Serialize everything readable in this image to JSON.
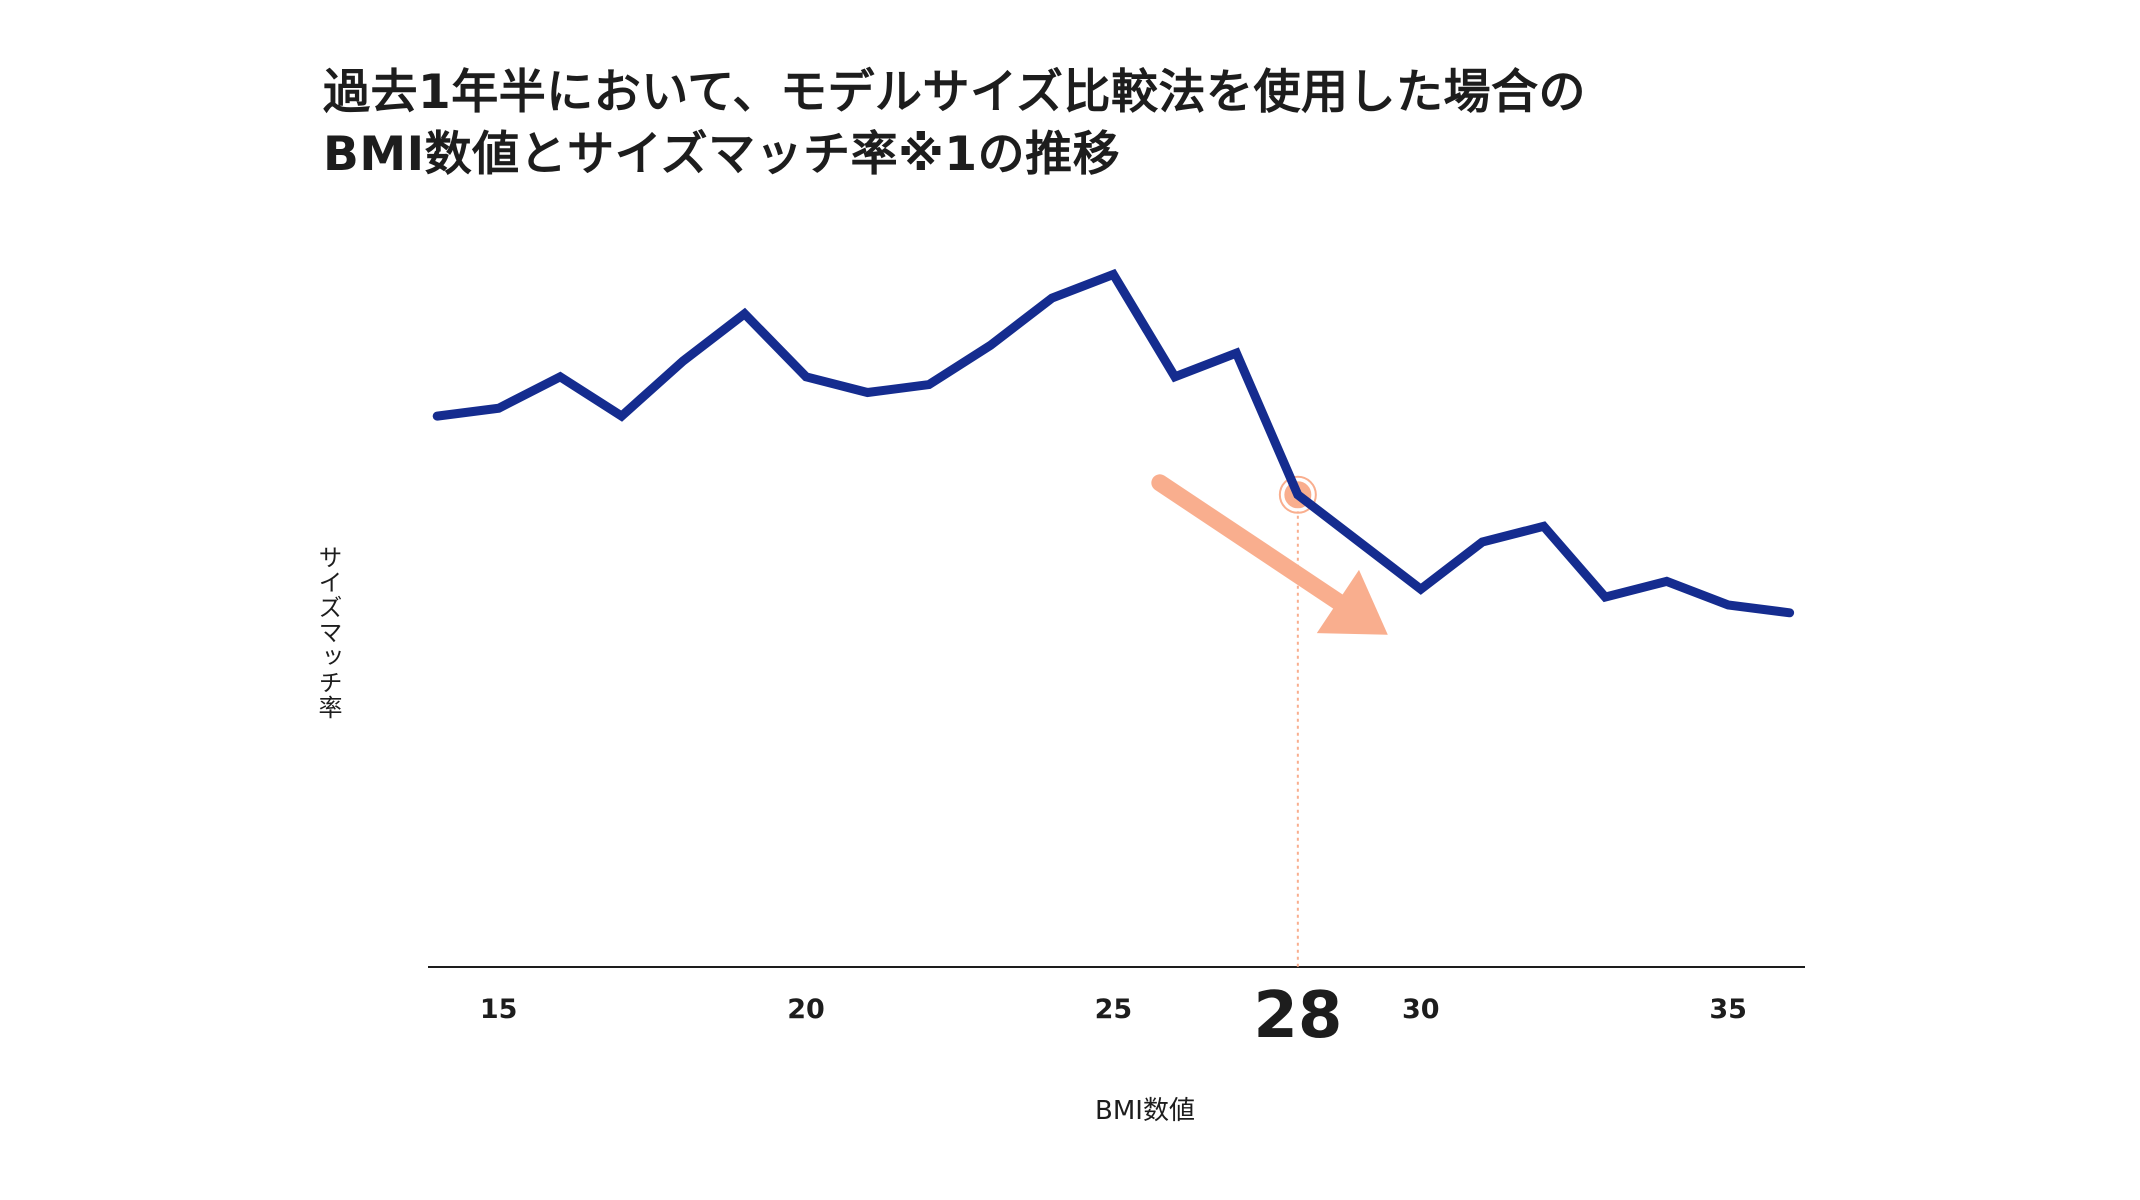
{
  "chart_data": {
    "type": "line",
    "title_lines": [
      "過去1年半において、モデルサイズ比較法を使用した場合の",
      "BMI数値とサイズマッチ率※1の推移"
    ],
    "xlabel": "BMI数値",
    "ylabel": "サイズマッチ率",
    "x_ticks": [
      15,
      20,
      25,
      30,
      35
    ],
    "highlight": {
      "x": 28,
      "label": "28",
      "y": 0.6,
      "color": "#f9ae8e"
    },
    "trend_arrow": {
      "direction": "down-right",
      "color": "#f9ae8e"
    },
    "xlim": [
      13.85,
      36.25
    ],
    "ylim": [
      0,
      1
    ],
    "grid": false,
    "series": [
      {
        "color": "#152c8f",
        "points": [
          [
            14,
            0.7
          ],
          [
            15,
            0.71
          ],
          [
            16,
            0.75
          ],
          [
            17,
            0.7
          ],
          [
            18,
            0.77
          ],
          [
            19,
            0.83
          ],
          [
            20,
            0.75
          ],
          [
            21,
            0.73
          ],
          [
            22,
            0.74
          ],
          [
            23,
            0.79
          ],
          [
            24,
            0.85
          ],
          [
            25,
            0.88
          ],
          [
            26,
            0.75
          ],
          [
            27,
            0.78
          ],
          [
            28,
            0.6
          ],
          [
            29,
            0.54
          ],
          [
            30,
            0.48
          ],
          [
            31,
            0.54
          ],
          [
            32,
            0.56
          ],
          [
            33,
            0.47
          ],
          [
            34,
            0.49
          ],
          [
            35,
            0.46
          ],
          [
            36,
            0.45
          ]
        ]
      }
    ]
  }
}
